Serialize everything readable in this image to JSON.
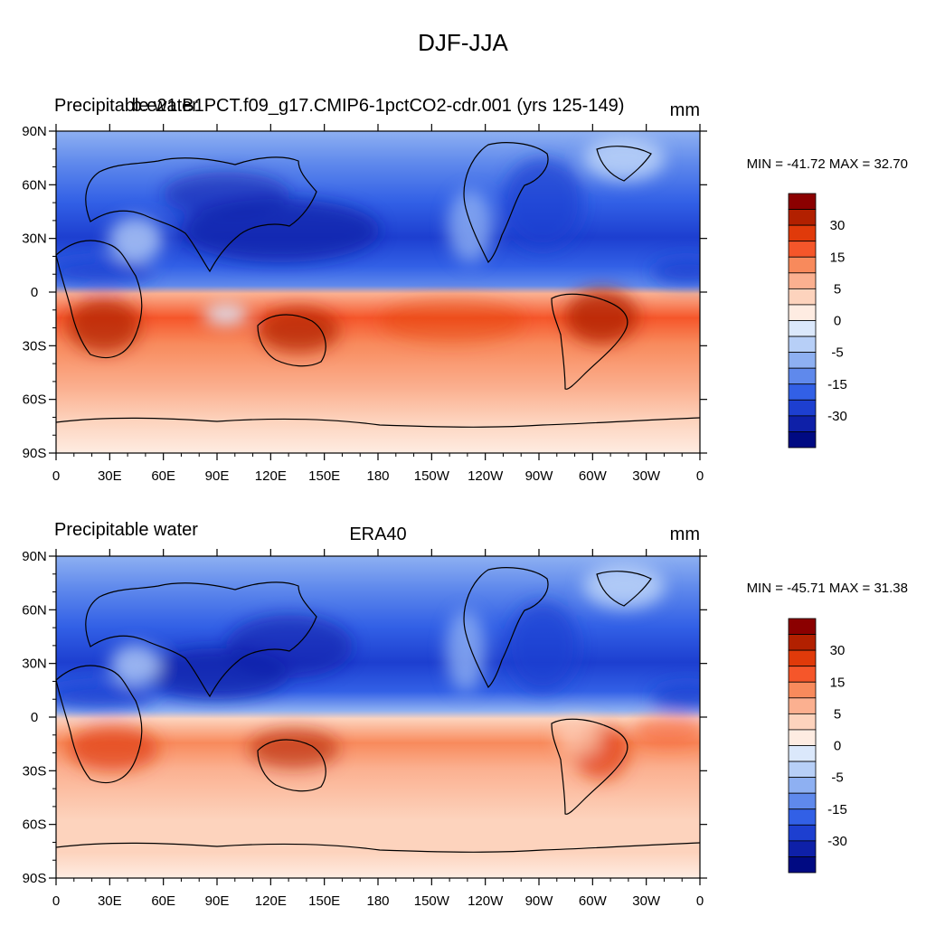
{
  "figure": {
    "title": "DJF-JJA"
  },
  "chart_data": [
    {
      "type": "heatmap",
      "left_title": "Precipitable water",
      "center_title": "b.e21.B1PCT.f09_g17.CMIP6-1pctCO2-cdr.001 (yrs 125-149)",
      "units": "mm",
      "stats": "MIN = -41.72 MAX =  32.70",
      "min": -41.72,
      "max": 32.7,
      "x_ticks": [
        "0",
        "30E",
        "60E",
        "90E",
        "120E",
        "150E",
        "180",
        "150W",
        "120W",
        "90W",
        "60W",
        "30W",
        "0"
      ],
      "y_ticks": [
        "90N",
        "60N",
        "30N",
        "0",
        "30S",
        "60S",
        "90S"
      ],
      "xlim": [
        0,
        360
      ],
      "ylim": [
        -90,
        90
      ]
    },
    {
      "type": "heatmap",
      "left_title": "Precipitable water",
      "center_title": "ERA40",
      "units": "mm",
      "stats": "MIN = -45.71 MAX =  31.38",
      "min": -45.71,
      "max": 31.38,
      "x_ticks": [
        "0",
        "30E",
        "60E",
        "90E",
        "120E",
        "150E",
        "180",
        "150W",
        "120W",
        "90W",
        "60W",
        "30W",
        "0"
      ],
      "y_ticks": [
        "90N",
        "60N",
        "30N",
        "0",
        "30S",
        "60S",
        "90S"
      ],
      "xlim": [
        0,
        360
      ],
      "ylim": [
        -90,
        90
      ]
    }
  ],
  "colorbar": {
    "colors": [
      "#8b0000",
      "#b22000",
      "#e03a0a",
      "#f5562a",
      "#f88a5c",
      "#fbb090",
      "#fdd3bd",
      "#feece2",
      "#dbe8fb",
      "#b7cff7",
      "#8eb0f2",
      "#5f89ec",
      "#3260e6",
      "#1d3fd0",
      "#0e20a8",
      "#000a82"
    ],
    "labels": [
      {
        "text": "30",
        "after_index": 1
      },
      {
        "text": "15",
        "after_index": 3
      },
      {
        "text": "5",
        "after_index": 5
      },
      {
        "text": "0",
        "after_index": 7
      },
      {
        "text": "-5",
        "after_index": 9
      },
      {
        "text": "-15",
        "after_index": 11
      },
      {
        "text": "-30",
        "after_index": 13
      }
    ]
  }
}
